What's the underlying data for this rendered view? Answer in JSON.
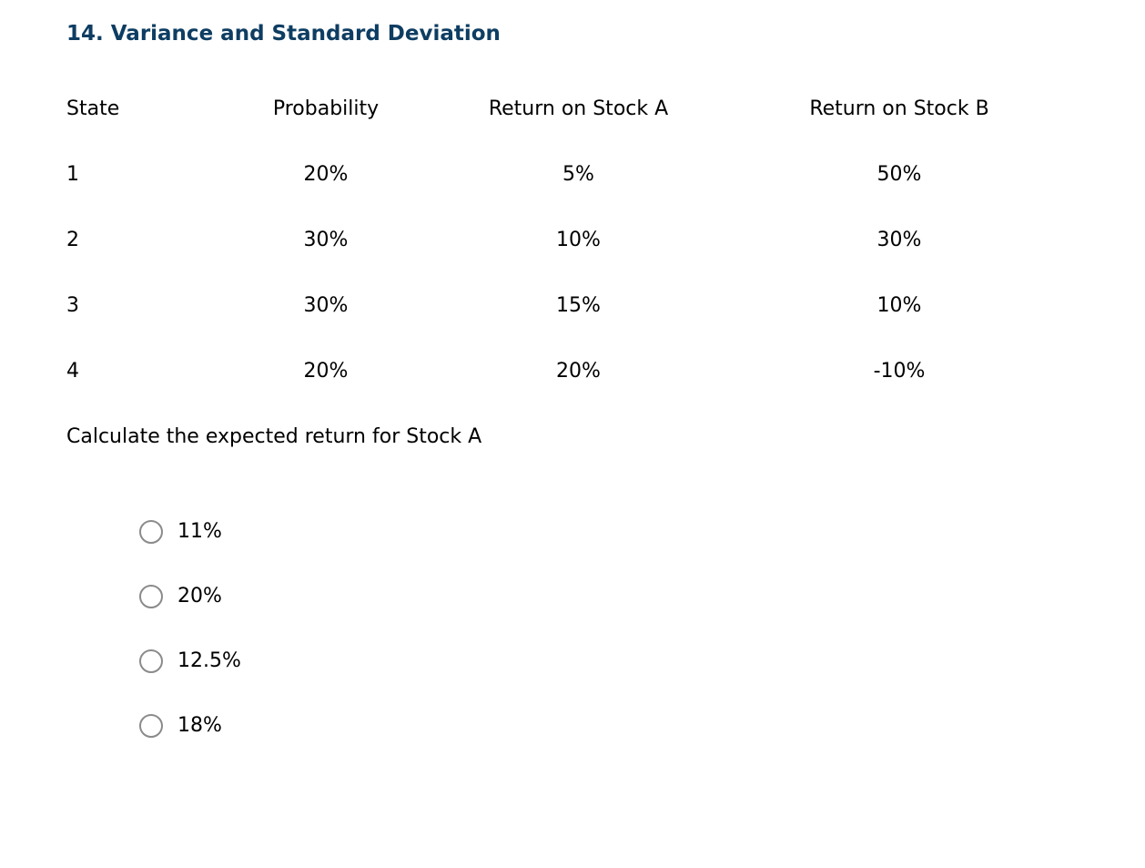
{
  "title": "14. Variance and Standard Deviation",
  "colors": {
    "title_text": "#0e3d62",
    "body_text": "#000000",
    "radio_border": "#8b8b8b",
    "background": "#ffffff"
  },
  "table": {
    "headers": [
      "State",
      "Probability",
      "Return on Stock A",
      "Return on Stock B"
    ],
    "rows": [
      [
        "1",
        "20%",
        "5%",
        "50%"
      ],
      [
        "2",
        "30%",
        "10%",
        "30%"
      ],
      [
        "3",
        "30%",
        "15%",
        "10%"
      ],
      [
        "4",
        "20%",
        "20%",
        "-10%"
      ]
    ]
  },
  "question": "Calculate the expected return for Stock A",
  "options": [
    {
      "label": "11%",
      "selected": false
    },
    {
      "label": "20%",
      "selected": false
    },
    {
      "label": "12.5%",
      "selected": false
    },
    {
      "label": "18%",
      "selected": false
    }
  ]
}
